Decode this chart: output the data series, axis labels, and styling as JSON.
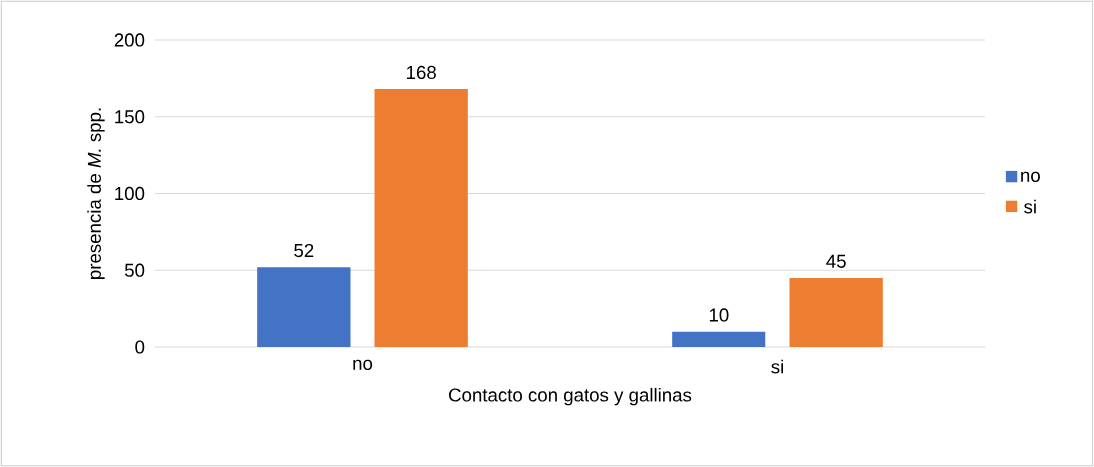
{
  "chart_data": {
    "type": "bar",
    "xlabel": "Contacto con gatos y gallinas",
    "ylabel": "presencia de *M.* spp.",
    "categories": [
      "no",
      "si"
    ],
    "series": [
      {
        "name": "no",
        "color": "#4472c4",
        "values": [
          52,
          10
        ]
      },
      {
        "name": "si",
        "color": "#ed7d31",
        "values": [
          168,
          45
        ]
      }
    ],
    "ylim": [
      0,
      200
    ],
    "yticks": [
      0,
      50,
      100,
      150,
      200
    ],
    "grid": "y",
    "legend": "right",
    "data_labels": true
  }
}
